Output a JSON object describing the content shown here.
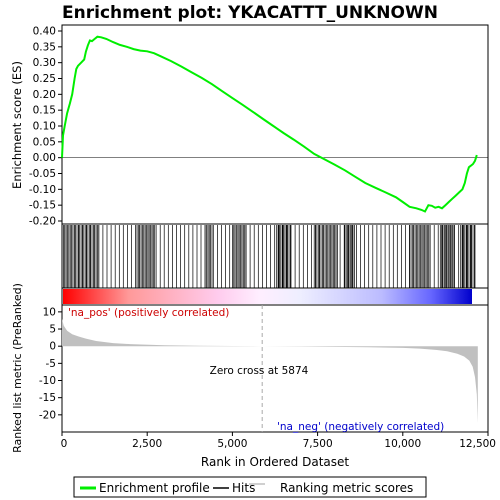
{
  "title": "Enrichment plot: YKACATTT_UNKNOWN",
  "colors": {
    "es_line": "#00ee00",
    "hits": "#000000",
    "metric_fill": "#c0c0c0",
    "pos_label": "#cc0000",
    "neg_label": "#0000cc",
    "bar_pos": "#ff0000",
    "bar_neg": "#0000ff"
  },
  "chart_data": [
    {
      "type": "line",
      "name": "enrichment-profile",
      "ylabel": "Enrichment score (ES)",
      "ylim": [
        -0.2,
        0.4
      ],
      "yticks": [
        -0.2,
        -0.15,
        -0.1,
        -0.05,
        0.0,
        0.05,
        0.1,
        0.15,
        0.2,
        0.25,
        0.3,
        0.35,
        0.4
      ],
      "ytick_labels": [
        "-0.20",
        "-0.15",
        "-0.10",
        "-0.05",
        "0.00",
        "0.05",
        "0.10",
        "0.15",
        "0.20",
        "0.25",
        "0.30",
        "0.35",
        "0.40"
      ],
      "xlim": [
        0,
        12500
      ],
      "grid": false,
      "x": [
        0,
        30,
        80,
        150,
        230,
        300,
        370,
        420,
        470,
        560,
        650,
        700,
        760,
        820,
        880,
        960,
        1040,
        1150,
        1300,
        1500,
        1700,
        1900,
        2100,
        2300,
        2500,
        2700,
        2900,
        3200,
        3500,
        3800,
        4100,
        4400,
        4700,
        5000,
        5300,
        5600,
        5900,
        6200,
        6500,
        6800,
        7100,
        7400,
        7700,
        8000,
        8300,
        8600,
        8900,
        9200,
        9500,
        9800,
        10000,
        10200,
        10400,
        10550,
        10650,
        10750,
        10850,
        10950,
        11050,
        11150,
        11250,
        11350,
        11450,
        11550,
        11650,
        11750,
        11820,
        11880,
        11940,
        12000,
        12060,
        12120,
        12170
      ],
      "y": [
        0.0,
        0.07,
        0.1,
        0.14,
        0.17,
        0.2,
        0.25,
        0.28,
        0.29,
        0.3,
        0.31,
        0.335,
        0.355,
        0.37,
        0.368,
        0.375,
        0.382,
        0.38,
        0.375,
        0.365,
        0.356,
        0.35,
        0.343,
        0.338,
        0.336,
        0.33,
        0.32,
        0.305,
        0.288,
        0.27,
        0.252,
        0.232,
        0.21,
        0.188,
        0.167,
        0.145,
        0.122,
        0.1,
        0.078,
        0.057,
        0.035,
        0.012,
        -0.005,
        -0.022,
        -0.04,
        -0.06,
        -0.08,
        -0.095,
        -0.11,
        -0.125,
        -0.14,
        -0.155,
        -0.16,
        -0.165,
        -0.17,
        -0.15,
        -0.152,
        -0.158,
        -0.155,
        -0.16,
        -0.15,
        -0.14,
        -0.13,
        -0.12,
        -0.11,
        -0.1,
        -0.08,
        -0.05,
        -0.03,
        -0.025,
        -0.02,
        -0.01,
        0.008
      ]
    },
    {
      "type": "hits",
      "name": "hits",
      "xlim": [
        0,
        12500
      ],
      "dense_ranges": [
        [
          0,
          1100
        ],
        [
          2200,
          2750
        ],
        [
          4200,
          4400
        ],
        [
          5000,
          5400
        ],
        [
          6300,
          6700
        ],
        [
          7400,
          8100
        ],
        [
          8300,
          8600
        ],
        [
          10200,
          10800
        ],
        [
          11100,
          11500
        ],
        [
          11700,
          12100
        ]
      ],
      "sparse_step": 120
    },
    {
      "type": "area",
      "name": "ranked-metric",
      "xlabel": "Rank in Ordered Dataset",
      "ylabel": "Ranked list metric (PreRanked)",
      "ylim": [
        -25,
        12
      ],
      "yticks": [
        10,
        5,
        0,
        -5,
        -10,
        -15,
        -20
      ],
      "ytick_labels": [
        "10",
        "5",
        "0",
        "-5",
        "-10",
        "-15",
        "-20"
      ],
      "xlim": [
        0,
        12500
      ],
      "xticks": [
        0,
        2500,
        5000,
        7500,
        10000,
        12500
      ],
      "xtick_labels": [
        "0",
        "2,500",
        "5,000",
        "7,500",
        "10,000",
        "12,500"
      ],
      "x": [
        0,
        50,
        150,
        300,
        500,
        700,
        1000,
        1500,
        2000,
        3000,
        4000,
        5000,
        5874,
        7000,
        8000,
        9000,
        10000,
        10500,
        11000,
        11300,
        11600,
        11800,
        11950,
        12050,
        12120,
        12170,
        12200
      ],
      "y": [
        8.0,
        6.0,
        4.5,
        3.5,
        2.8,
        2.2,
        1.5,
        0.9,
        0.6,
        0.3,
        0.15,
        0.05,
        0.0,
        -0.1,
        -0.2,
        -0.3,
        -0.5,
        -0.7,
        -1.1,
        -1.5,
        -2.2,
        -3.0,
        -4.2,
        -6.0,
        -9.0,
        -14.0,
        -22.5
      ],
      "annotations": {
        "zero_cross": "Zero cross at 5874",
        "zero_cross_x": 5874,
        "pos_label": "'na_pos' (positively correlated)",
        "neg_label": "'na_neg' (negatively correlated)"
      }
    }
  ],
  "legend": {
    "items": [
      {
        "label": "Enrichment profile",
        "kind": "line",
        "color": "#00ee00"
      },
      {
        "label": "Hits",
        "kind": "line",
        "color": "#000000"
      },
      {
        "label": "Ranking metric scores",
        "kind": "line",
        "color": "#c0c0c0"
      }
    ]
  }
}
